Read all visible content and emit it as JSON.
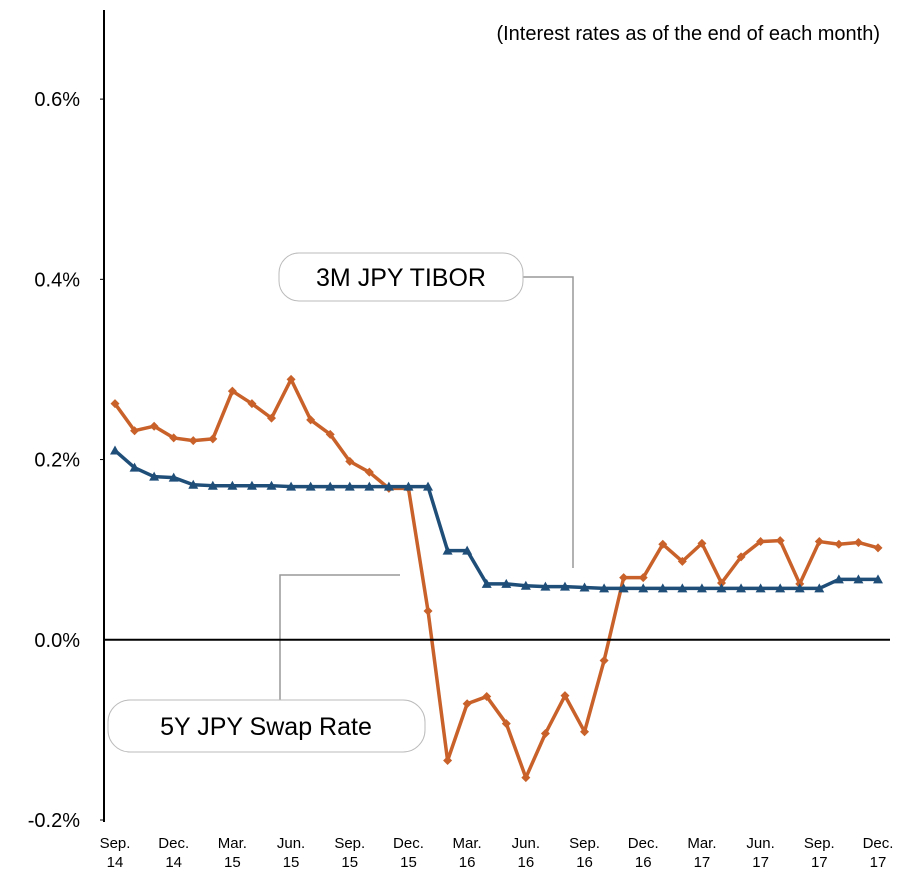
{
  "chart_data": {
    "type": "line",
    "subtitle": "(Interest rates as of the end of each month)",
    "categories": [
      "Sep. 14",
      null,
      null,
      "Dec. 14",
      null,
      null,
      "Mar. 15",
      null,
      null,
      "Jun. 15",
      null,
      null,
      "Sep. 15",
      null,
      null,
      "Dec. 15",
      null,
      null,
      "Mar. 16",
      null,
      null,
      "Jun. 16",
      null,
      null,
      "Sep. 16",
      null,
      null,
      "Dec. 16",
      null,
      null,
      "Mar. 17",
      null,
      null,
      "Jun. 17",
      null,
      null,
      "Sep. 17",
      null,
      null,
      "Dec. 17"
    ],
    "series": [
      {
        "name": "5Y JPY Swap Rate",
        "color": "#c8622a",
        "marker": "diamond",
        "values": [
          0.262,
          0.232,
          0.237,
          0.224,
          0.221,
          0.223,
          0.276,
          0.262,
          0.246,
          0.289,
          0.244,
          0.228,
          0.198,
          0.186,
          0.168,
          0.168,
          0.032,
          -0.134,
          -0.071,
          -0.063,
          -0.093,
          -0.153,
          -0.104,
          -0.062,
          -0.102,
          -0.023,
          0.069,
          0.069,
          0.106,
          0.087,
          0.107,
          0.063,
          0.092,
          0.109,
          0.11,
          0.062,
          0.109,
          0.106,
          0.108,
          0.102
        ]
      },
      {
        "name": "3M JPY TIBOR",
        "color": "#1f4e79",
        "marker": "triangle",
        "values": [
          0.21,
          0.191,
          0.181,
          0.18,
          0.172,
          0.171,
          0.171,
          0.171,
          0.171,
          0.17,
          0.17,
          0.17,
          0.17,
          0.17,
          0.17,
          0.17,
          0.17,
          0.099,
          0.099,
          0.062,
          0.062,
          0.06,
          0.059,
          0.059,
          0.058,
          0.057,
          0.057,
          0.057,
          0.057,
          0.057,
          0.057,
          0.057,
          0.057,
          0.057,
          0.057,
          0.057,
          0.057,
          0.067,
          0.067,
          0.067
        ]
      }
    ],
    "ylim": [
      -0.2,
      0.7
    ],
    "yticks": [
      {
        "value": -0.2,
        "label": "-0.2%"
      },
      {
        "value": 0,
        "label": "0.0%"
      },
      {
        "value": 0.2,
        "label": "0.2%"
      },
      {
        "value": 0.4,
        "label": "0.4%"
      },
      {
        "value": 0.6,
        "label": "0.6%"
      }
    ],
    "grid": false
  }
}
